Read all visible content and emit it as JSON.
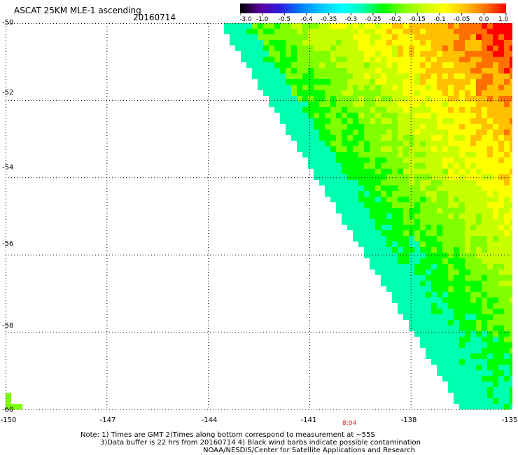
{
  "header": {
    "title": "ASCAT 25KM MLE-1 ascending",
    "date": "20160714"
  },
  "colorbar": {
    "ticks": [
      "-3.0",
      "-1.0",
      "-0.5",
      "-0.4",
      "-0.35",
      "-0.3",
      "-0.25",
      "-0.2",
      "-0.15",
      "-0.1",
      "-0.05",
      "0.0",
      "1.0"
    ],
    "colors": [
      "#000000",
      "#5a00a0",
      "#2a20e0",
      "#0080ff",
      "#00c8ff",
      "#00ffff",
      "#00ffb0",
      "#00ff00",
      "#80ff00",
      "#c8ff00",
      "#ffff00",
      "#ffc000",
      "#ff7000",
      "#ff0000"
    ]
  },
  "map": {
    "lat_labels": [
      "-50",
      "-52",
      "-54",
      "-56",
      "-58",
      "-60"
    ],
    "lon_labels": [
      "-150",
      "-147",
      "-144",
      "-141",
      "-138",
      "-135"
    ],
    "lat_range": [
      -60,
      -50
    ],
    "lon_range": [
      -150,
      -135
    ],
    "swath_label": "8:04"
  },
  "notes": {
    "line1": "Note: 1) Times are GMT 2)Times along bottom correspond to measurement at ~55S",
    "line2": "3)Data buffer is 22 hrs from 20160714 4) Black wind barbs indicate possible contamination",
    "line3": "NOAA/NESDIS/Center for Satellite Applications and Research"
  }
}
